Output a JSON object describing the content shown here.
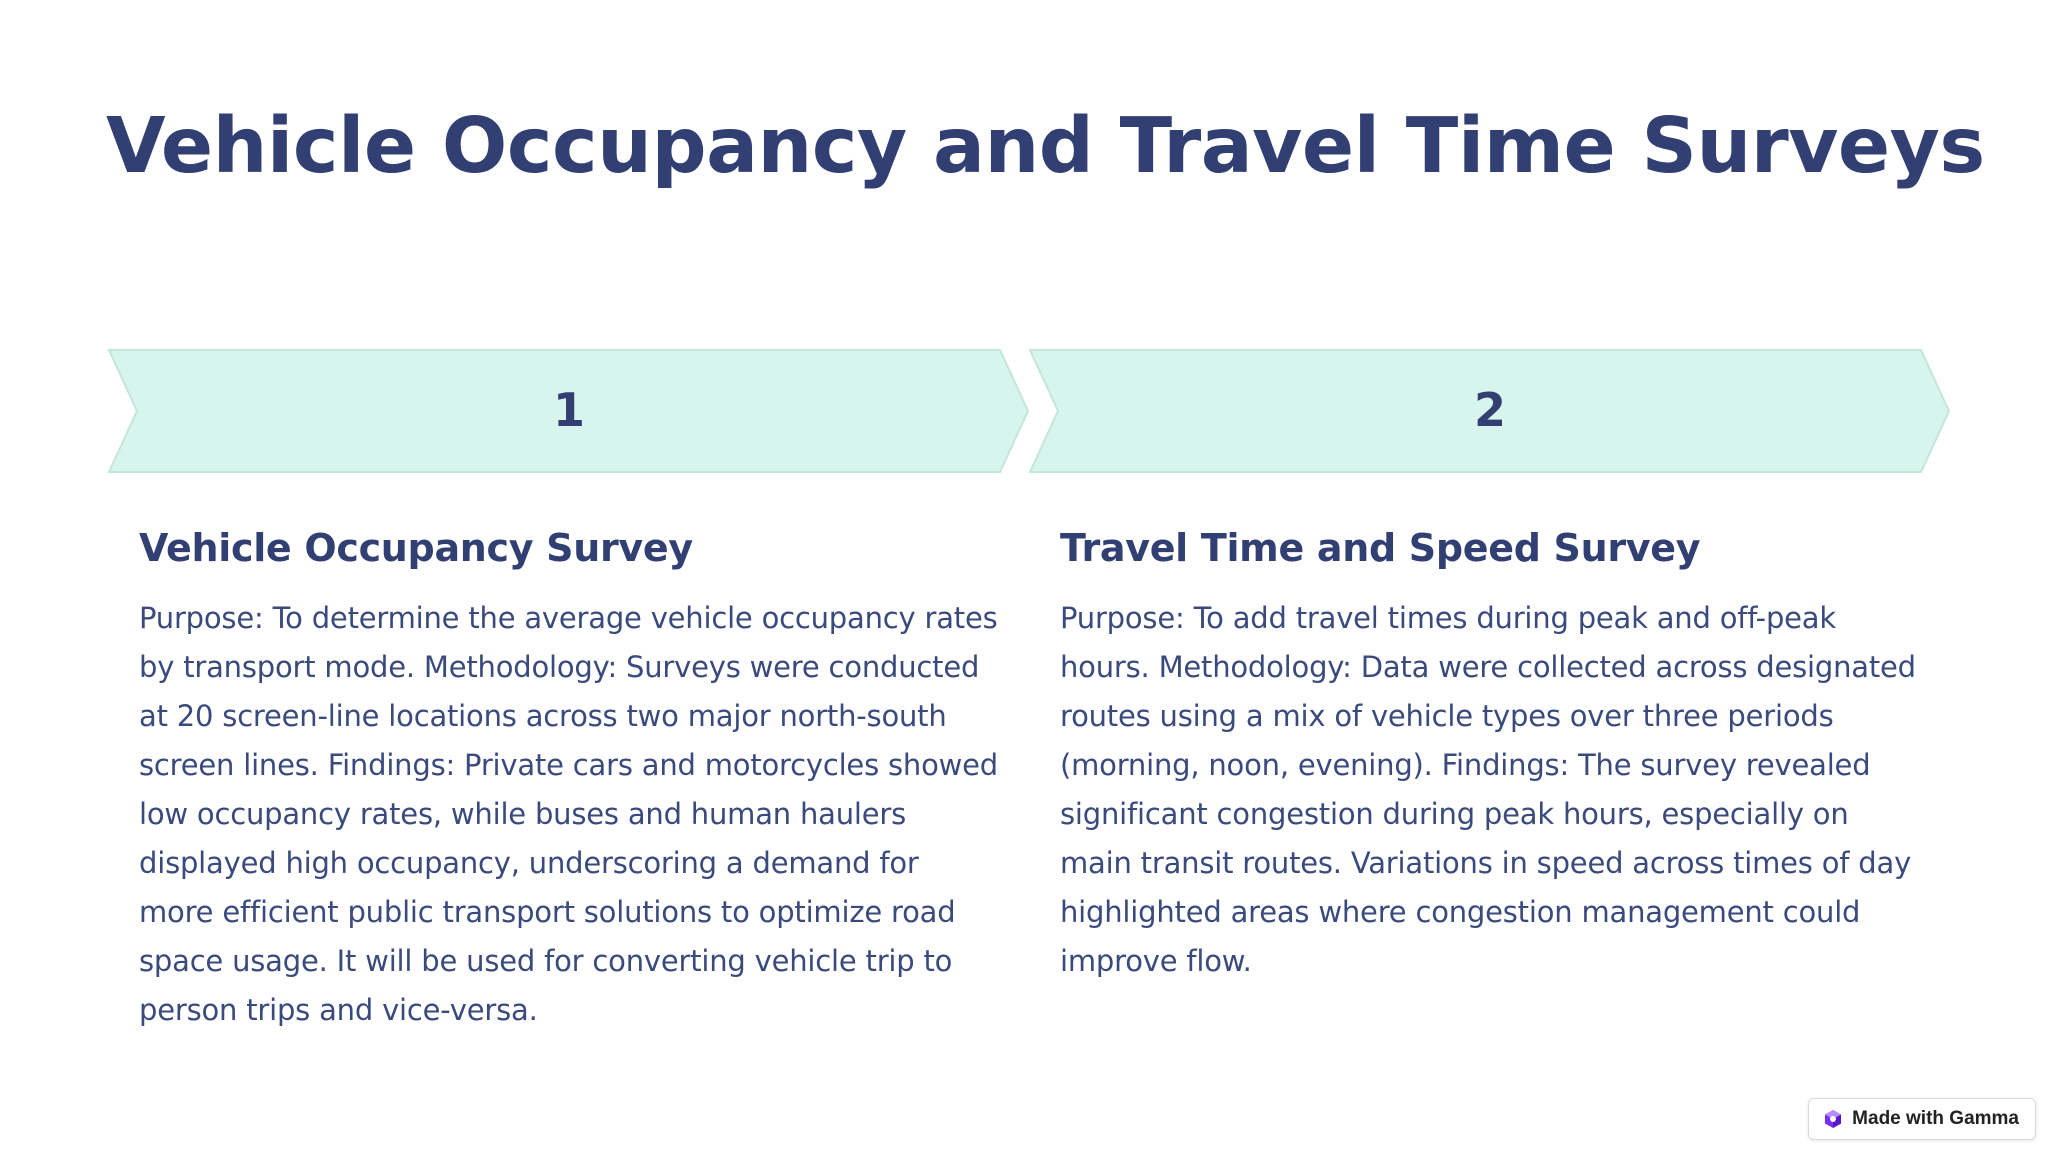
{
  "slide": {
    "title": "Vehicle Occupancy and Travel Time Surveys"
  },
  "steps": [
    {
      "number": "1",
      "heading": "Vehicle Occupancy Survey",
      "body": "Purpose: To determine the average vehicle occupancy rates by transport mode. Methodology: Surveys were conducted at 20 screen-line locations across two major north-south screen lines. Findings: Private cars and motorcycles showed low occupancy rates, while buses and human haulers displayed high occupancy, underscoring a demand for more efficient public transport solutions to optimize road space usage. It will be used for converting vehicle trip to person trips and vice-versa."
    },
    {
      "number": "2",
      "heading": "Travel Time and Speed Survey",
      "body": "Purpose: To add travel times during peak and off-peak hours. Methodology: Data were collected across designated routes using a mix of vehicle types over three periods (morning, noon, evening). Findings: The survey revealed significant congestion during peak hours, especially on main transit routes. Variations in speed across times of day highlighted areas where congestion management could improve flow."
    }
  ],
  "badge": {
    "label": "Made with Gamma",
    "icon": "gamma-logo-icon"
  },
  "colors": {
    "title": "#313f73",
    "body_text": "#3a4a7c",
    "chevron_fill": "#d7f5ec",
    "chevron_stroke": "#c3e6d9",
    "gamma_logo": "#7b2ff2"
  }
}
